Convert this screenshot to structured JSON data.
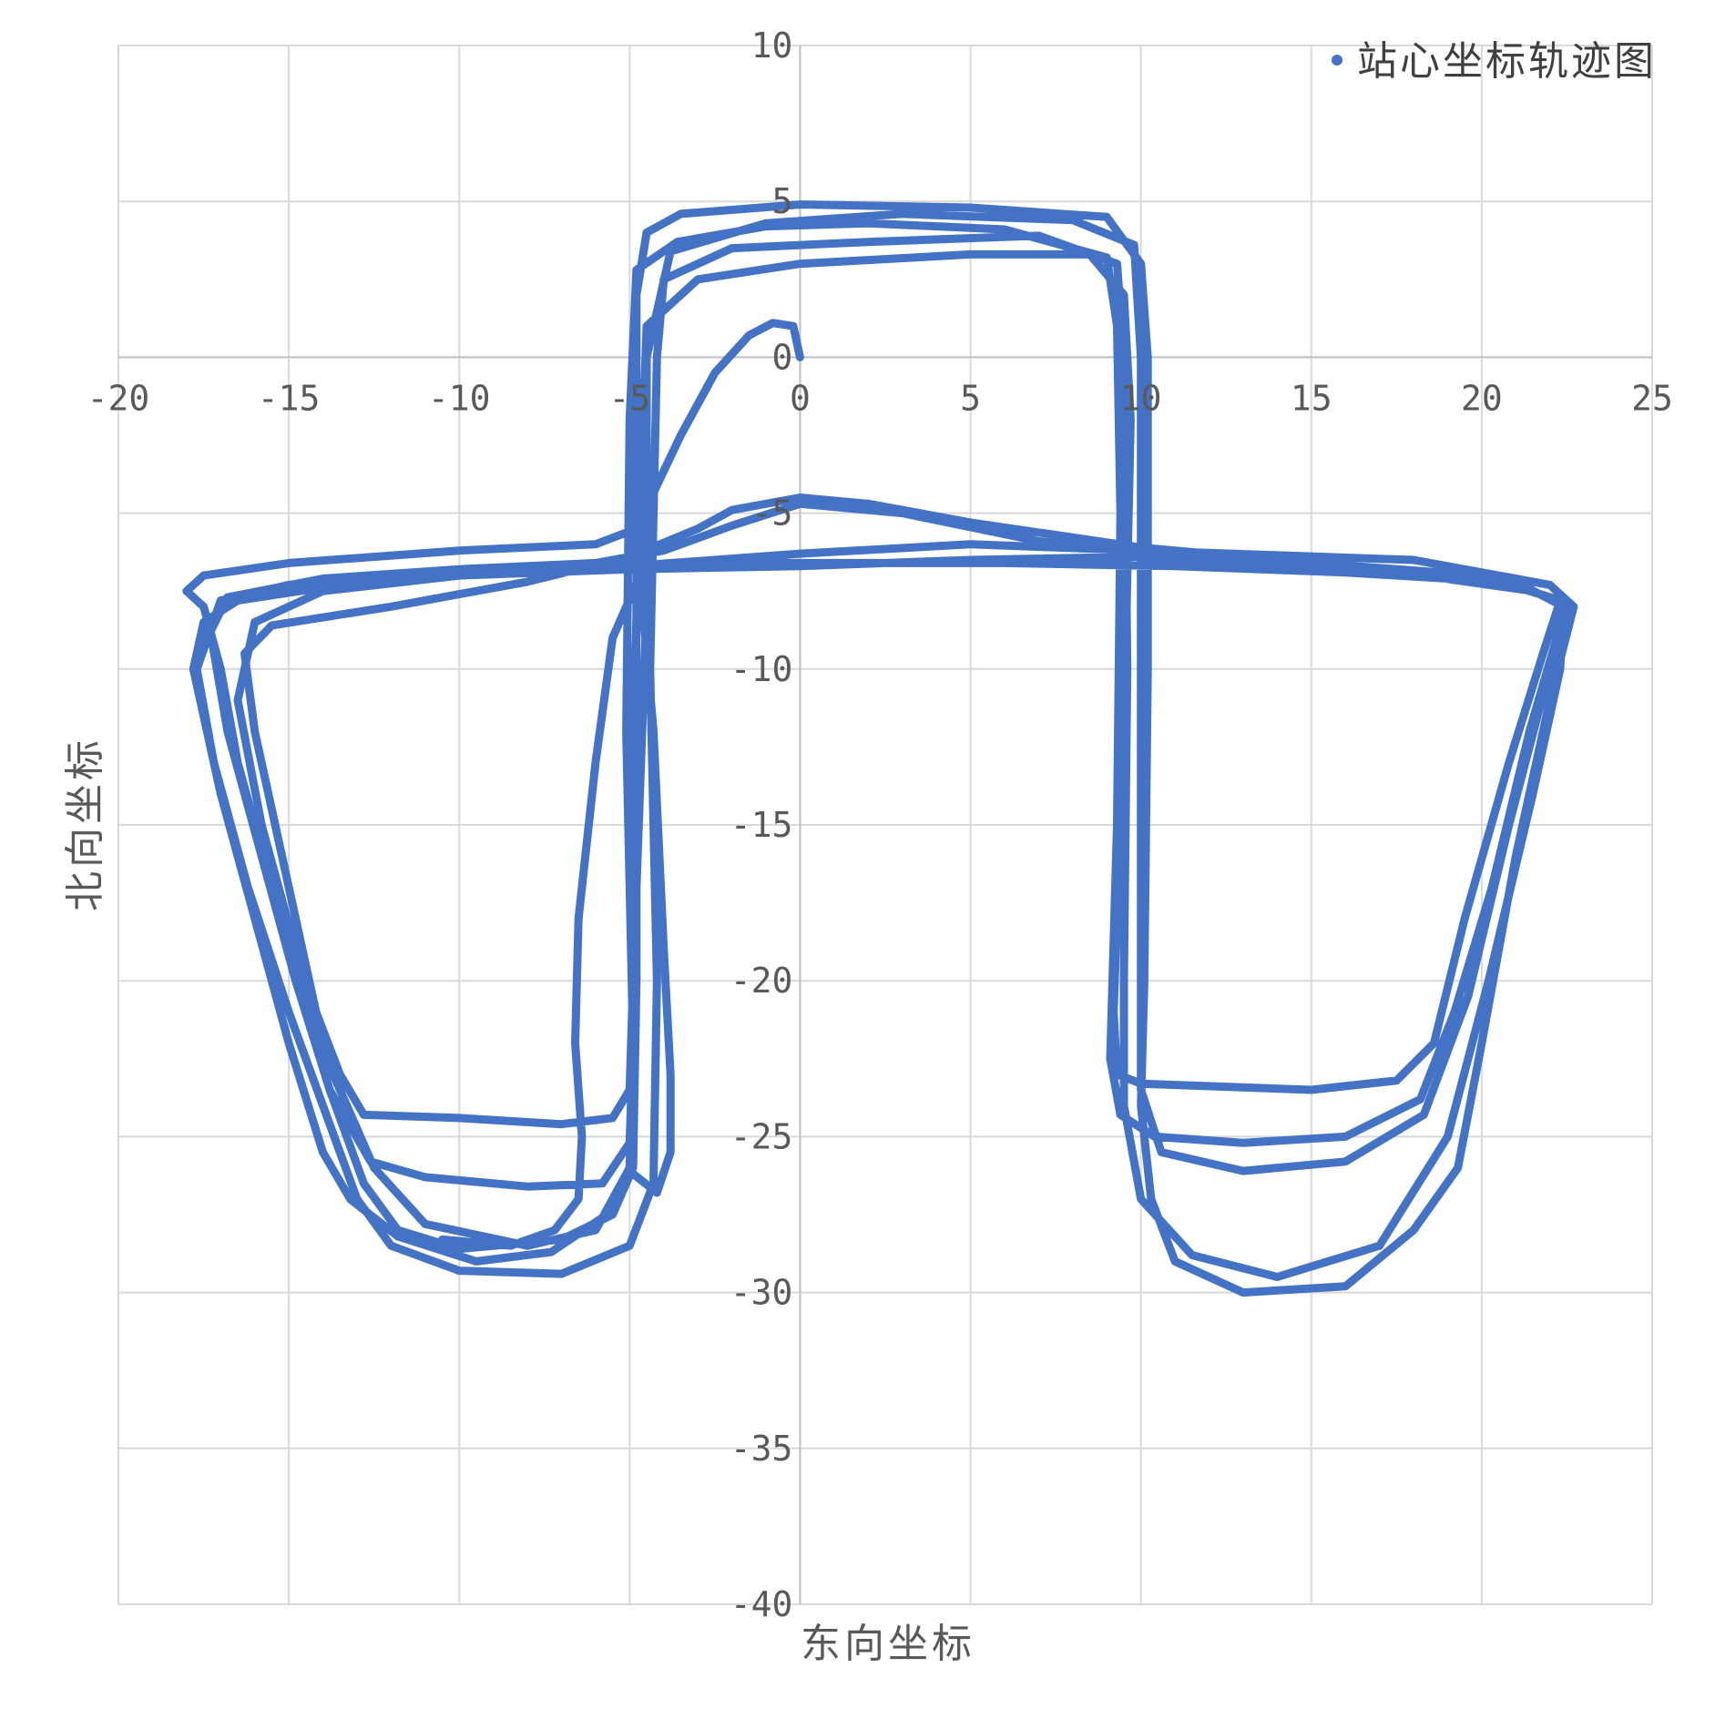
{
  "chart_data": {
    "type": "scatter",
    "title": "",
    "xlabel": "东向坐标",
    "ylabel": "北向坐标",
    "xlim": [
      -20,
      25
    ],
    "ylim": [
      -40,
      10
    ],
    "x_ticks": [
      -20,
      -15,
      -10,
      -5,
      0,
      5,
      10,
      15,
      20,
      25
    ],
    "y_ticks": [
      10,
      5,
      0,
      -5,
      -10,
      -15,
      -20,
      -25,
      -30,
      -35,
      -40
    ],
    "grid": true,
    "legend_position": "top-right",
    "series_color": "#4472C4",
    "series": [
      {
        "name": "站心坐标轨迹图",
        "segments": [
          [
            [
              0,
              0
            ],
            [
              -0.2,
              1
            ],
            [
              -0.8,
              1.1
            ],
            [
              -1.5,
              0.7
            ],
            [
              -2.5,
              -0.5
            ],
            [
              -3.5,
              -2.5
            ],
            [
              -4.5,
              -4.8
            ],
            [
              -4.8,
              -5.5
            ],
            [
              -6,
              -6
            ],
            [
              -10,
              -6.2
            ],
            [
              -15,
              -6.6
            ],
            [
              -17.5,
              -7
            ],
            [
              -18,
              -7.5
            ],
            [
              -17.5,
              -8
            ],
            [
              -17,
              -10
            ],
            [
              -16.5,
              -13
            ],
            [
              -15.5,
              -17
            ],
            [
              -14.5,
              -21
            ],
            [
              -13.8,
              -23.5
            ],
            [
              -12.8,
              -26.5
            ],
            [
              -11.8,
              -28
            ],
            [
              -10,
              -28.6
            ],
            [
              -7,
              -28.3
            ],
            [
              -5.5,
              -27.5
            ],
            [
              -4.9,
              -26
            ],
            [
              -4.8,
              -20
            ],
            [
              -4.8,
              -10
            ],
            [
              -4.8,
              2
            ],
            [
              -4.5,
              4
            ],
            [
              -3.5,
              4.6
            ],
            [
              0,
              4.9
            ],
            [
              5,
              4.8
            ],
            [
              9,
              4.5
            ],
            [
              10,
              3
            ],
            [
              10.2,
              0
            ],
            [
              10.2,
              -10
            ],
            [
              10.1,
              -20
            ],
            [
              10,
              -24
            ],
            [
              10.3,
              -27
            ],
            [
              11,
              -29
            ],
            [
              13,
              -30
            ],
            [
              16,
              -29.8
            ],
            [
              18,
              -28
            ],
            [
              19.3,
              -26
            ],
            [
              20,
              -22
            ],
            [
              21,
              -16
            ],
            [
              22,
              -11
            ],
            [
              22.7,
              -8
            ],
            [
              22,
              -7.3
            ],
            [
              18,
              -6.5
            ],
            [
              10,
              -6.2
            ],
            [
              5,
              -6
            ],
            [
              0,
              -6.3
            ],
            [
              -5,
              -6.7
            ],
            [
              -10,
              -6.9
            ],
            [
              -15,
              -7.3
            ],
            [
              -17,
              -7.8
            ],
            [
              -17.7,
              -10
            ],
            [
              -17.2,
              -13
            ],
            [
              -16.2,
              -17
            ],
            [
              -15,
              -21
            ],
            [
              -14,
              -24
            ],
            [
              -13,
              -27
            ],
            [
              -12,
              -28.5
            ],
            [
              -10,
              -29.3
            ],
            [
              -7,
              -29.4
            ],
            [
              -5,
              -28.5
            ],
            [
              -4.3,
              -26.5
            ],
            [
              -4.2,
              -20
            ],
            [
              -4.4,
              -10
            ],
            [
              -4.2,
              0
            ],
            [
              -4,
              2.5
            ],
            [
              -2,
              3.5
            ],
            [
              2,
              3.7
            ],
            [
              7,
              3.9
            ],
            [
              9.3,
              3
            ],
            [
              9.5,
              0
            ],
            [
              9.6,
              -10
            ],
            [
              9.5,
              -20
            ],
            [
              9.5,
              -24
            ],
            [
              10,
              -27
            ],
            [
              11.5,
              -28.8
            ],
            [
              14,
              -29.5
            ],
            [
              17,
              -28.5
            ],
            [
              19,
              -25
            ],
            [
              20.2,
              -20
            ],
            [
              21.5,
              -14
            ],
            [
              22.3,
              -10
            ],
            [
              22.4,
              -8
            ],
            [
              21,
              -7.2
            ],
            [
              15,
              -6.7
            ],
            [
              10,
              -6.4
            ],
            [
              5,
              -6.5
            ],
            [
              0,
              -6.7
            ],
            [
              -5,
              -6.8
            ],
            [
              -10,
              -7
            ],
            [
              -14,
              -7.5
            ],
            [
              -16,
              -8.5
            ],
            [
              -16.5,
              -11
            ],
            [
              -15.8,
              -15
            ],
            [
              -14.8,
              -19
            ],
            [
              -13.7,
              -23
            ],
            [
              -12.5,
              -26
            ],
            [
              -11,
              -27.8
            ],
            [
              -8,
              -28.5
            ],
            [
              -6,
              -28
            ],
            [
              -5,
              -26
            ],
            [
              -4.9,
              -22
            ],
            [
              -5,
              -15
            ],
            [
              -4.7,
              -5
            ],
            [
              -4.5,
              1
            ],
            [
              -3,
              2.5
            ],
            [
              0,
              3
            ],
            [
              5,
              3.3
            ],
            [
              8.5,
              3.3
            ],
            [
              9.5,
              2
            ],
            [
              9.7,
              -2
            ],
            [
              9.5,
              -12
            ],
            [
              9.2,
              -21
            ],
            [
              9.3,
              -23
            ],
            [
              10,
              -23.3
            ],
            [
              15,
              -23.5
            ],
            [
              17.5,
              -23.2
            ],
            [
              18.6,
              -22
            ],
            [
              19.5,
              -18
            ],
            [
              20.8,
              -13
            ],
            [
              21.8,
              -9.5
            ],
            [
              22.3,
              -7.8
            ],
            [
              20,
              -7
            ],
            [
              15,
              -6.6
            ],
            [
              10,
              -6.1
            ],
            [
              5,
              -5.3
            ],
            [
              2,
              -4.7
            ],
            [
              0,
              -4.5
            ],
            [
              -2,
              -4.9
            ],
            [
              -3,
              -5.5
            ],
            [
              -5,
              -6.4
            ],
            [
              -8,
              -7.2
            ],
            [
              -12,
              -8
            ],
            [
              -15.5,
              -8.6
            ],
            [
              -16.3,
              -9.5
            ],
            [
              -16,
              -12
            ],
            [
              -15,
              -17
            ],
            [
              -14.2,
              -21
            ],
            [
              -13.5,
              -23
            ],
            [
              -12.8,
              -24.3
            ],
            [
              -10,
              -24.4
            ],
            [
              -7,
              -24.6
            ],
            [
              -5.5,
              -24.4
            ],
            [
              -5,
              -23.5
            ],
            [
              -4.9,
              -20
            ],
            [
              -4.5,
              -8
            ],
            [
              -4.5,
              0
            ],
            [
              -3.8,
              3.4
            ],
            [
              -1,
              4.3
            ],
            [
              3,
              4.6
            ],
            [
              8,
              4.4
            ],
            [
              9.8,
              3.6
            ],
            [
              10,
              0
            ],
            [
              10,
              -10
            ],
            [
              10,
              -20
            ],
            [
              10,
              -23.5
            ],
            [
              10.6,
              -25.5
            ],
            [
              13,
              -26.1
            ],
            [
              16,
              -25.8
            ],
            [
              18.3,
              -24.3
            ],
            [
              19.6,
              -20.5
            ],
            [
              20.8,
              -15
            ],
            [
              22,
              -10
            ],
            [
              22.5,
              -8
            ],
            [
              21.5,
              -7.5
            ],
            [
              17,
              -6.8
            ],
            [
              12,
              -6.5
            ],
            [
              7,
              -5.9
            ],
            [
              3,
              -5
            ],
            [
              0,
              -4.7
            ],
            [
              -2,
              -5.4
            ],
            [
              -4,
              -6.2
            ],
            [
              -6,
              -6.6
            ],
            [
              -10,
              -6.8
            ],
            [
              -14,
              -7.1
            ],
            [
              -16.8,
              -7.7
            ],
            [
              -17.3,
              -8.8
            ],
            [
              -16.8,
              -12
            ],
            [
              -15.8,
              -16
            ],
            [
              -14.8,
              -20
            ],
            [
              -13.8,
              -23.5
            ],
            [
              -12.6,
              -25.8
            ],
            [
              -11,
              -26.3
            ],
            [
              -8,
              -26.6
            ],
            [
              -5.8,
              -26.5
            ],
            [
              -5,
              -25.2
            ],
            [
              -4.9,
              -22
            ],
            [
              -5.1,
              -12
            ],
            [
              -5,
              -2
            ],
            [
              -4.8,
              2.8
            ],
            [
              -3.6,
              3.7
            ],
            [
              -1,
              4.2
            ],
            [
              2,
              4.3
            ],
            [
              6,
              4.1
            ],
            [
              9,
              3.2
            ],
            [
              9.3,
              1
            ],
            [
              9.4,
              -5
            ],
            [
              9.3,
              -15
            ],
            [
              9.1,
              -22.5
            ],
            [
              9.4,
              -24.3
            ],
            [
              10.4,
              -25
            ],
            [
              13,
              -25.2
            ],
            [
              16,
              -25
            ],
            [
              18.2,
              -23.8
            ],
            [
              19.2,
              -21
            ],
            [
              20.3,
              -17
            ],
            [
              21.4,
              -12
            ],
            [
              22.2,
              -9
            ],
            [
              22.3,
              -7.8
            ],
            [
              20.5,
              -7.2
            ],
            [
              16,
              -6.9
            ],
            [
              11,
              -6.7
            ],
            [
              6,
              -6.6
            ],
            [
              1,
              -6.6
            ],
            [
              -3,
              -6.6
            ],
            [
              -6,
              -6.7
            ],
            [
              -10,
              -6.9
            ],
            [
              -13.5,
              -7.3
            ],
            [
              -16.5,
              -7.8
            ],
            [
              -17.5,
              -8.5
            ],
            [
              -17.8,
              -10
            ],
            [
              -17,
              -14
            ],
            [
              -16,
              -18
            ],
            [
              -15,
              -22
            ],
            [
              -14,
              -25.5
            ],
            [
              -13.2,
              -27
            ],
            [
              -11.8,
              -28.2
            ],
            [
              -9.5,
              -29
            ],
            [
              -7.3,
              -28.7
            ],
            [
              -5.8,
              -27.6
            ],
            [
              -5,
              -26.1
            ],
            [
              -4.2,
              -26.8
            ],
            [
              -3.8,
              -25.5
            ],
            [
              -3.8,
              -23
            ],
            [
              -4,
              -19
            ],
            [
              -4.3,
              -12
            ],
            [
              -4.7,
              -7
            ],
            [
              -5.5,
              -9
            ],
            [
              -6,
              -13
            ],
            [
              -6.5,
              -18
            ],
            [
              -6.6,
              -22
            ],
            [
              -6.4,
              -25
            ],
            [
              -6.5,
              -27
            ],
            [
              -7.2,
              -28
            ],
            [
              -8.5,
              -28.5
            ],
            [
              -10.5,
              -28.3
            ]
          ]
        ]
      }
    ]
  }
}
